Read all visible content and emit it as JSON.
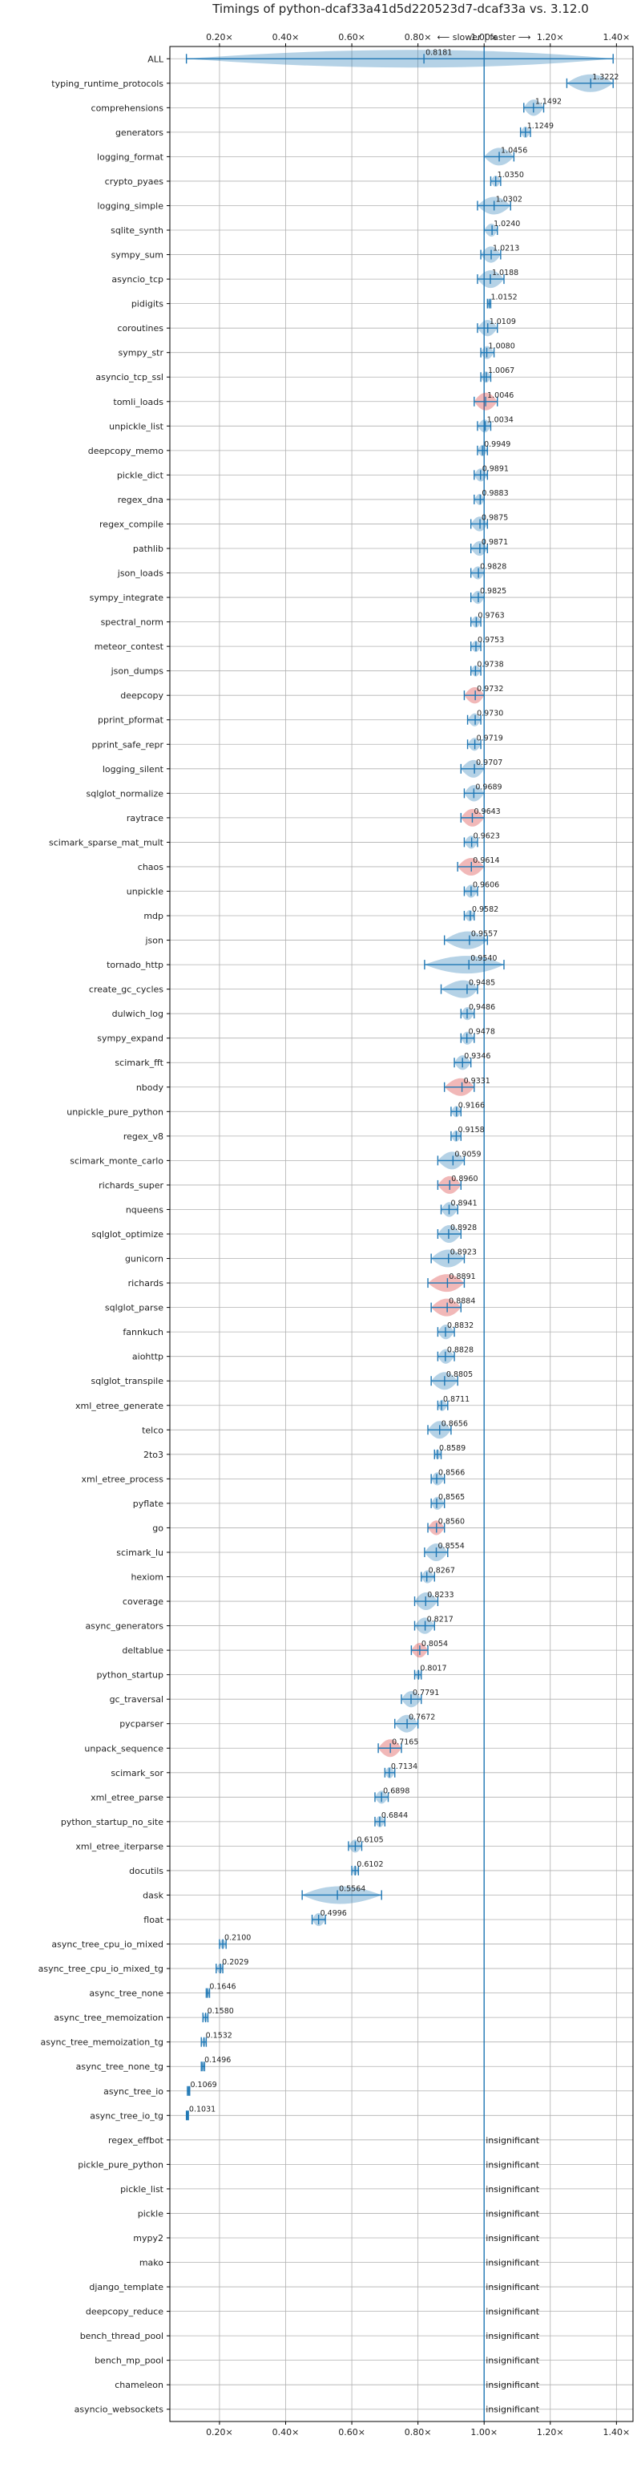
{
  "chart_data": {
    "type": "violin",
    "title": "Timings of python-dcaf33a41d5d220523d7-dcaf33a vs. 3.12.0",
    "subtitle": "⟵ slower | faster ⟶",
    "x_ticks": [
      "0.20×",
      "0.40×",
      "0.60×",
      "0.80×",
      "1.00×",
      "1.20×",
      "1.40×"
    ],
    "x_tick_values": [
      0.2,
      0.4,
      0.6,
      0.8,
      1.0,
      1.2,
      1.4
    ],
    "xlim": [
      0.05,
      1.45
    ],
    "reference_value": 1.0,
    "grid": true,
    "colors": {
      "significant": "#1f77b4",
      "red_flag": "#d62728"
    },
    "insignificant_label": "insignificant",
    "benchmarks": [
      {
        "name": "ALL",
        "value": 0.8181,
        "low": 0.1,
        "high": 1.39,
        "red": false
      },
      {
        "name": "typing_runtime_protocols",
        "value": 1.3222,
        "low": 1.25,
        "high": 1.39,
        "red": false
      },
      {
        "name": "comprehensions",
        "value": 1.1492,
        "low": 1.12,
        "high": 1.18,
        "red": false
      },
      {
        "name": "generators",
        "value": 1.1249,
        "low": 1.11,
        "high": 1.14,
        "red": false
      },
      {
        "name": "logging_format",
        "value": 1.0456,
        "low": 1.0,
        "high": 1.09,
        "red": false
      },
      {
        "name": "crypto_pyaes",
        "value": 1.035,
        "low": 1.02,
        "high": 1.05,
        "red": false
      },
      {
        "name": "logging_simple",
        "value": 1.0302,
        "low": 0.98,
        "high": 1.08,
        "red": false
      },
      {
        "name": "sqlite_synth",
        "value": 1.024,
        "low": 1.0,
        "high": 1.04,
        "red": false
      },
      {
        "name": "sympy_sum",
        "value": 1.0213,
        "low": 0.99,
        "high": 1.05,
        "red": false
      },
      {
        "name": "asyncio_tcp",
        "value": 1.0188,
        "low": 0.98,
        "high": 1.06,
        "red": false
      },
      {
        "name": "pidigits",
        "value": 1.0152,
        "low": 1.01,
        "high": 1.02,
        "red": false
      },
      {
        "name": "coroutines",
        "value": 1.0109,
        "low": 0.98,
        "high": 1.04,
        "red": false
      },
      {
        "name": "sympy_str",
        "value": 1.008,
        "low": 0.99,
        "high": 1.03,
        "red": false
      },
      {
        "name": "asyncio_tcp_ssl",
        "value": 1.0067,
        "low": 0.99,
        "high": 1.02,
        "red": false
      },
      {
        "name": "tomli_loads",
        "value": 1.0046,
        "low": 0.97,
        "high": 1.04,
        "red": true
      },
      {
        "name": "unpickle_list",
        "value": 1.0034,
        "low": 0.98,
        "high": 1.02,
        "red": false
      },
      {
        "name": "deepcopy_memo",
        "value": 0.9949,
        "low": 0.98,
        "high": 1.01,
        "red": false
      },
      {
        "name": "pickle_dict",
        "value": 0.9891,
        "low": 0.97,
        "high": 1.01,
        "red": false
      },
      {
        "name": "regex_dna",
        "value": 0.9883,
        "low": 0.97,
        "high": 1.0,
        "red": false
      },
      {
        "name": "regex_compile",
        "value": 0.9875,
        "low": 0.96,
        "high": 1.01,
        "red": false
      },
      {
        "name": "pathlib",
        "value": 0.9871,
        "low": 0.96,
        "high": 1.01,
        "red": false
      },
      {
        "name": "json_loads",
        "value": 0.9828,
        "low": 0.96,
        "high": 1.0,
        "red": false
      },
      {
        "name": "sympy_integrate",
        "value": 0.9825,
        "low": 0.96,
        "high": 1.0,
        "red": false
      },
      {
        "name": "spectral_norm",
        "value": 0.9763,
        "low": 0.96,
        "high": 0.99,
        "red": false
      },
      {
        "name": "meteor_contest",
        "value": 0.9753,
        "low": 0.96,
        "high": 0.99,
        "red": false
      },
      {
        "name": "json_dumps",
        "value": 0.9738,
        "low": 0.96,
        "high": 0.99,
        "red": false
      },
      {
        "name": "deepcopy",
        "value": 0.9732,
        "low": 0.94,
        "high": 1.0,
        "red": true
      },
      {
        "name": "pprint_pformat",
        "value": 0.973,
        "low": 0.95,
        "high": 0.99,
        "red": false
      },
      {
        "name": "pprint_safe_repr",
        "value": 0.9719,
        "low": 0.95,
        "high": 0.99,
        "red": false
      },
      {
        "name": "logging_silent",
        "value": 0.9707,
        "low": 0.93,
        "high": 1.0,
        "red": false
      },
      {
        "name": "sqlglot_normalize",
        "value": 0.9689,
        "low": 0.94,
        "high": 1.0,
        "red": false
      },
      {
        "name": "raytrace",
        "value": 0.9643,
        "low": 0.93,
        "high": 1.0,
        "red": true
      },
      {
        "name": "scimark_sparse_mat_mult",
        "value": 0.9623,
        "low": 0.94,
        "high": 0.98,
        "red": false
      },
      {
        "name": "chaos",
        "value": 0.9614,
        "low": 0.92,
        "high": 1.0,
        "red": true
      },
      {
        "name": "unpickle",
        "value": 0.9606,
        "low": 0.94,
        "high": 0.98,
        "red": false
      },
      {
        "name": "mdp",
        "value": 0.9582,
        "low": 0.94,
        "high": 0.97,
        "red": false
      },
      {
        "name": "json",
        "value": 0.9557,
        "low": 0.88,
        "high": 1.01,
        "red": false
      },
      {
        "name": "tornado_http",
        "value": 0.954,
        "low": 0.82,
        "high": 1.06,
        "red": false
      },
      {
        "name": "create_gc_cycles",
        "value": 0.9485,
        "low": 0.87,
        "high": 0.98,
        "red": false
      },
      {
        "name": "dulwich_log",
        "value": 0.9486,
        "low": 0.93,
        "high": 0.97,
        "red": false
      },
      {
        "name": "sympy_expand",
        "value": 0.9478,
        "low": 0.93,
        "high": 0.97,
        "red": false
      },
      {
        "name": "scimark_fft",
        "value": 0.9346,
        "low": 0.91,
        "high": 0.96,
        "red": false
      },
      {
        "name": "nbody",
        "value": 0.9331,
        "low": 0.88,
        "high": 0.97,
        "red": true
      },
      {
        "name": "unpickle_pure_python",
        "value": 0.9166,
        "low": 0.9,
        "high": 0.93,
        "red": false
      },
      {
        "name": "regex_v8",
        "value": 0.9158,
        "low": 0.9,
        "high": 0.93,
        "red": false
      },
      {
        "name": "scimark_monte_carlo",
        "value": 0.9059,
        "low": 0.86,
        "high": 0.94,
        "red": false
      },
      {
        "name": "richards_super",
        "value": 0.896,
        "low": 0.86,
        "high": 0.93,
        "red": true
      },
      {
        "name": "nqueens",
        "value": 0.8941,
        "low": 0.87,
        "high": 0.92,
        "red": false
      },
      {
        "name": "sqlglot_optimize",
        "value": 0.8928,
        "low": 0.86,
        "high": 0.93,
        "red": false
      },
      {
        "name": "gunicorn",
        "value": 0.8923,
        "low": 0.84,
        "high": 0.94,
        "red": false
      },
      {
        "name": "richards",
        "value": 0.8891,
        "low": 0.83,
        "high": 0.94,
        "red": true
      },
      {
        "name": "sqlglot_parse",
        "value": 0.8884,
        "low": 0.84,
        "high": 0.93,
        "red": true
      },
      {
        "name": "fannkuch",
        "value": 0.8832,
        "low": 0.86,
        "high": 0.91,
        "red": false
      },
      {
        "name": "aiohttp",
        "value": 0.8828,
        "low": 0.86,
        "high": 0.91,
        "red": false
      },
      {
        "name": "sqlglot_transpile",
        "value": 0.8805,
        "low": 0.84,
        "high": 0.92,
        "red": false
      },
      {
        "name": "xml_etree_generate",
        "value": 0.8711,
        "low": 0.86,
        "high": 0.89,
        "red": false
      },
      {
        "name": "telco",
        "value": 0.8656,
        "low": 0.83,
        "high": 0.9,
        "red": false
      },
      {
        "name": "2to3",
        "value": 0.8589,
        "low": 0.85,
        "high": 0.87,
        "red": false
      },
      {
        "name": "xml_etree_process",
        "value": 0.8566,
        "low": 0.84,
        "high": 0.88,
        "red": false
      },
      {
        "name": "pyflate",
        "value": 0.8565,
        "low": 0.84,
        "high": 0.88,
        "red": false
      },
      {
        "name": "go",
        "value": 0.856,
        "low": 0.83,
        "high": 0.88,
        "red": true
      },
      {
        "name": "scimark_lu",
        "value": 0.8554,
        "low": 0.82,
        "high": 0.89,
        "red": false
      },
      {
        "name": "hexiom",
        "value": 0.8267,
        "low": 0.81,
        "high": 0.85,
        "red": false
      },
      {
        "name": "coverage",
        "value": 0.8233,
        "low": 0.79,
        "high": 0.86,
        "red": false
      },
      {
        "name": "async_generators",
        "value": 0.8217,
        "low": 0.79,
        "high": 0.85,
        "red": false
      },
      {
        "name": "deltablue",
        "value": 0.8054,
        "low": 0.78,
        "high": 0.83,
        "red": true
      },
      {
        "name": "python_startup",
        "value": 0.8017,
        "low": 0.79,
        "high": 0.81,
        "red": false
      },
      {
        "name": "gc_traversal",
        "value": 0.7791,
        "low": 0.75,
        "high": 0.81,
        "red": false
      },
      {
        "name": "pycparser",
        "value": 0.7672,
        "low": 0.73,
        "high": 0.8,
        "red": false
      },
      {
        "name": "unpack_sequence",
        "value": 0.7165,
        "low": 0.68,
        "high": 0.75,
        "red": true
      },
      {
        "name": "scimark_sor",
        "value": 0.7134,
        "low": 0.7,
        "high": 0.73,
        "red": false
      },
      {
        "name": "xml_etree_parse",
        "value": 0.6898,
        "low": 0.67,
        "high": 0.71,
        "red": false
      },
      {
        "name": "python_startup_no_site",
        "value": 0.6844,
        "low": 0.67,
        "high": 0.7,
        "red": false
      },
      {
        "name": "xml_etree_iterparse",
        "value": 0.6105,
        "low": 0.59,
        "high": 0.63,
        "red": false
      },
      {
        "name": "docutils",
        "value": 0.6102,
        "low": 0.6,
        "high": 0.62,
        "red": false
      },
      {
        "name": "dask",
        "value": 0.5564,
        "low": 0.45,
        "high": 0.69,
        "red": false
      },
      {
        "name": "float",
        "value": 0.4996,
        "low": 0.48,
        "high": 0.52,
        "red": false
      },
      {
        "name": "async_tree_cpu_io_mixed",
        "value": 0.21,
        "low": 0.2,
        "high": 0.22,
        "red": false
      },
      {
        "name": "async_tree_cpu_io_mixed_tg",
        "value": 0.2029,
        "low": 0.19,
        "high": 0.21,
        "red": false
      },
      {
        "name": "async_tree_none",
        "value": 0.1646,
        "low": 0.16,
        "high": 0.17,
        "red": false
      },
      {
        "name": "async_tree_memoization",
        "value": 0.158,
        "low": 0.15,
        "high": 0.165,
        "red": false
      },
      {
        "name": "async_tree_memoization_tg",
        "value": 0.1532,
        "low": 0.145,
        "high": 0.16,
        "red": false
      },
      {
        "name": "async_tree_none_tg",
        "value": 0.1496,
        "low": 0.145,
        "high": 0.155,
        "red": false
      },
      {
        "name": "async_tree_io",
        "value": 0.1069,
        "low": 0.103,
        "high": 0.11,
        "red": false
      },
      {
        "name": "async_tree_io_tg",
        "value": 0.1031,
        "low": 0.1,
        "high": 0.106,
        "red": false
      },
      {
        "name": "regex_effbot",
        "insignificant": true
      },
      {
        "name": "pickle_pure_python",
        "insignificant": true
      },
      {
        "name": "pickle_list",
        "insignificant": true
      },
      {
        "name": "pickle",
        "insignificant": true
      },
      {
        "name": "mypy2",
        "insignificant": true
      },
      {
        "name": "mako",
        "insignificant": true
      },
      {
        "name": "django_template",
        "insignificant": true
      },
      {
        "name": "deepcopy_reduce",
        "insignificant": true
      },
      {
        "name": "bench_thread_pool",
        "insignificant": true
      },
      {
        "name": "bench_mp_pool",
        "insignificant": true
      },
      {
        "name": "chameleon",
        "insignificant": true
      },
      {
        "name": "asyncio_websockets",
        "insignificant": true
      }
    ]
  }
}
